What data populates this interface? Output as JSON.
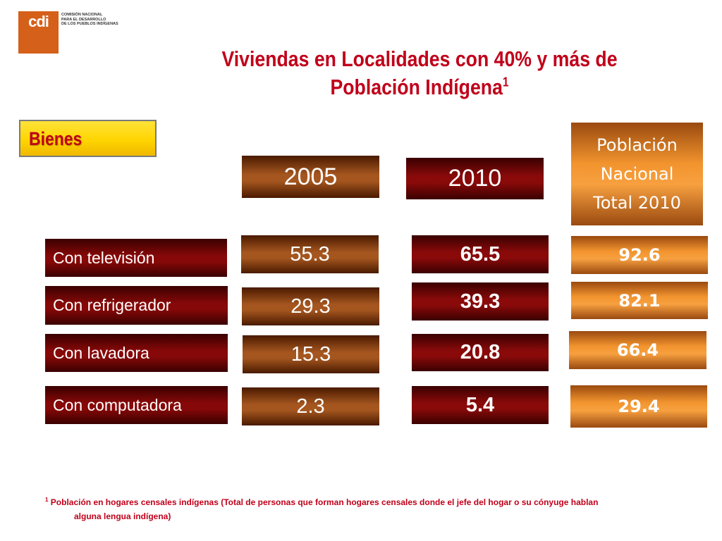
{
  "logo": {
    "mark": "cdi",
    "lines": [
      "COMISIÓN NACIONAL",
      "PARA EL DESARROLLO",
      "DE LOS PUEBLOS INDÍGENAS"
    ],
    "color": "#d4601a"
  },
  "title": {
    "line1": "Viviendas en Localidades con 40% y más de",
    "line2": "Población Indígena",
    "sup": "1"
  },
  "section_label": "Bienes",
  "columns": {
    "year_2005": "2005",
    "year_2010": "2010",
    "national": [
      "Población",
      "Nacional",
      "Total 2010"
    ]
  },
  "rows": [
    {
      "label": "Con televisión",
      "v2005": "55.3",
      "v2010": "65.5",
      "national": "92.6"
    },
    {
      "label": "Con refrigerador",
      "v2005": "29.3",
      "v2010": "39.3",
      "national": "82.1"
    },
    {
      "label": "Con lavadora",
      "v2005": "15.3",
      "v2010": "20.8",
      "national": "66.4"
    },
    {
      "label": "Con computadora",
      "v2005": "2.3",
      "v2010": "5.4",
      "national": "29.4"
    }
  ],
  "footnote": {
    "sup": "1",
    "line1": " Población en hogares censales indígenas (Total de personas que forman hogares censales donde el jefe del hogar o su cónyuge hablan",
    "line2": "alguna lengua indígena)"
  },
  "colors": {
    "title": "#c0001a",
    "badge": "#ffd500",
    "brown": "#a5561f",
    "dark_red": "#8a0a0a",
    "orange": "#f2942e"
  }
}
